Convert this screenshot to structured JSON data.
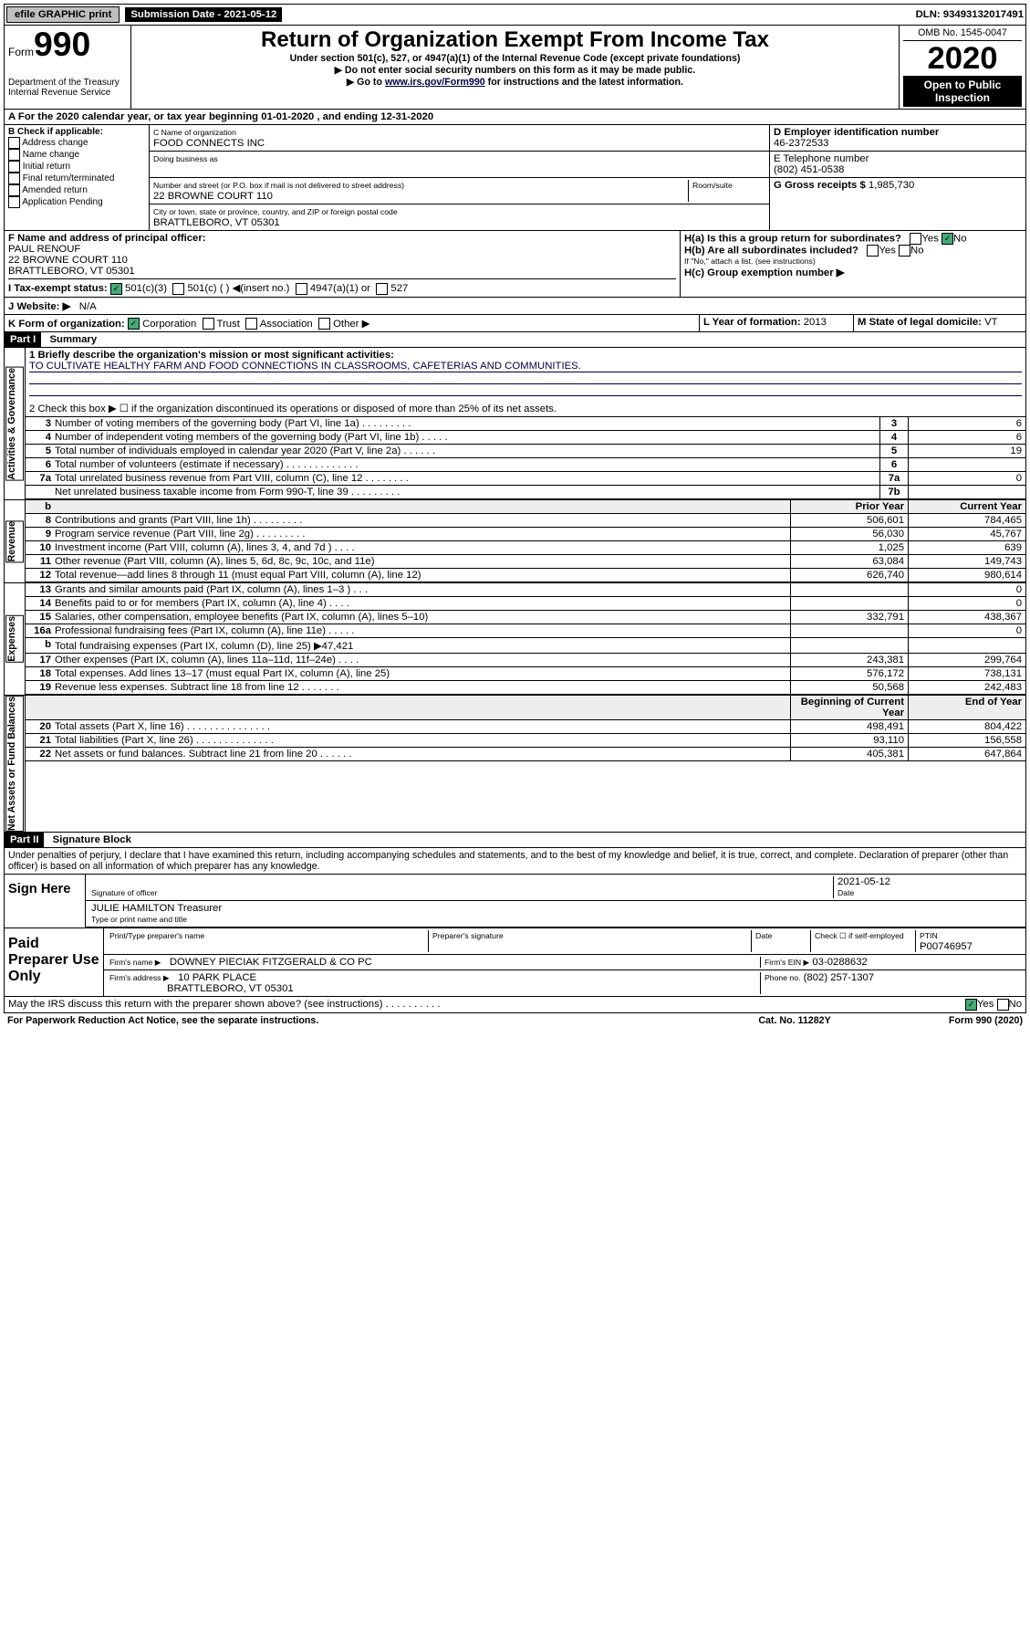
{
  "topbar": {
    "efile": "efile GRAPHIC print",
    "sub_label": "Submission Date - 2021-05-12",
    "dln": "DLN: 93493132017491"
  },
  "header": {
    "form_label": "Form",
    "form_no": "990",
    "dept1": "Department of the Treasury",
    "dept2": "Internal Revenue Service",
    "title": "Return of Organization Exempt From Income Tax",
    "sub1": "Under section 501(c), 527, or 4947(a)(1) of the Internal Revenue Code (except private foundations)",
    "sub2": "▶ Do not enter social security numbers on this form as it may be made public.",
    "sub3_pre": "▶ Go to ",
    "sub3_link": "www.irs.gov/Form990",
    "sub3_post": " for instructions and the latest information.",
    "omb": "OMB No. 1545-0047",
    "year": "2020",
    "open": "Open to Public Inspection"
  },
  "A": "A For the 2020 calendar year, or tax year beginning 01-01-2020    , and ending 12-31-2020",
  "B": {
    "hdr": "B Check if applicable:",
    "items": [
      "Address change",
      "Name change",
      "Initial return",
      "Final return/terminated",
      "Amended return",
      "Application Pending"
    ]
  },
  "C": {
    "name_lbl": "C Name of organization",
    "name": "FOOD CONNECTS INC",
    "dba_lbl": "Doing business as",
    "addr_lbl": "Number and street (or P.O. box if mail is not delivered to street address)",
    "room_lbl": "Room/suite",
    "addr": "22 BROWNE COURT 110",
    "city_lbl": "City or town, state or province, country, and ZIP or foreign postal code",
    "city": "BRATTLEBORO, VT  05301"
  },
  "D": {
    "lbl": "D Employer identification number",
    "val": "46-2372533"
  },
  "E": {
    "lbl": "E Telephone number",
    "val": "(802) 451-0538"
  },
  "G": {
    "lbl": "G Gross receipts $",
    "val": "1,985,730"
  },
  "F": {
    "lbl": "F  Name and address of principal officer:",
    "name": "PAUL RENOUF",
    "addr1": "22 BROWNE COURT 110",
    "addr2": "BRATTLEBORO, VT  05301"
  },
  "H": {
    "a": "H(a)  Is this a group return for subordinates?",
    "b": "H(b)  Are all subordinates included?",
    "bnote": "If \"No,\" attach a list. (see instructions)",
    "c": "H(c)  Group exemption number ▶",
    "yes": "Yes",
    "no": "No"
  },
  "I": {
    "lbl": "I   Tax-exempt status:",
    "opts": [
      "501(c)(3)",
      "501(c) (  ) ◀(insert no.)",
      "4947(a)(1) or",
      "527"
    ]
  },
  "J": {
    "lbl": "J   Website: ▶",
    "val": "N/A"
  },
  "K": {
    "lbl": "K Form of organization:",
    "opts": [
      "Corporation",
      "Trust",
      "Association",
      "Other ▶"
    ]
  },
  "L": {
    "lbl": "L Year of formation:",
    "val": "2013"
  },
  "M": {
    "lbl": "M State of legal domicile:",
    "val": "VT"
  },
  "part1": {
    "bar": "Part I",
    "title": "Summary",
    "group_ag": "Activities & Governance",
    "group_rev": "Revenue",
    "group_exp": "Expenses",
    "group_na": "Net Assets or Fund Balances",
    "line1_lbl": "1  Briefly describe the organization's mission or most significant activities:",
    "line1_val": "TO CULTIVATE HEALTHY FARM AND FOOD CONNECTIONS IN CLASSROOMS, CAFETERIAS AND COMMUNITIES.",
    "line2": "2   Check this box ▶ ☐  if the organization discontinued its operations or disposed of more than 25% of its net assets.",
    "lines_ag": [
      {
        "n": "3",
        "d": "Number of voting members of the governing body (Part VI, line 1a)  .  .  .  .  .  .  .  .  .",
        "b": "3",
        "v": "6"
      },
      {
        "n": "4",
        "d": "Number of independent voting members of the governing body (Part VI, line 1b)  .  .  .  .  .",
        "b": "4",
        "v": "6"
      },
      {
        "n": "5",
        "d": "Total number of individuals employed in calendar year 2020 (Part V, line 2a)  .  .  .  .  .  .",
        "b": "5",
        "v": "19"
      },
      {
        "n": "6",
        "d": "Total number of volunteers (estimate if necessary)  .  .  .  .  .  .  .  .  .  .  .  .  .",
        "b": "6",
        "v": ""
      },
      {
        "n": "7a",
        "d": "Total unrelated business revenue from Part VIII, column (C), line 12  .  .  .  .  .  .  .  .",
        "b": "7a",
        "v": "0"
      },
      {
        "n": "",
        "d": "Net unrelated business taxable income from Form 990-T, line 39  .  .  .  .  .  .  .  .  .",
        "b": "7b",
        "v": ""
      }
    ],
    "hdr_prior": "Prior Year",
    "hdr_curr": "Current Year",
    "lines_rev": [
      {
        "n": "8",
        "d": "Contributions and grants (Part VIII, line 1h)  .  .  .  .  .  .  .  .  .",
        "p": "506,601",
        "c": "784,465"
      },
      {
        "n": "9",
        "d": "Program service revenue (Part VIII, line 2g)  .  .  .  .  .  .  .  .  .",
        "p": "56,030",
        "c": "45,767"
      },
      {
        "n": "10",
        "d": "Investment income (Part VIII, column (A), lines 3, 4, and 7d )  .  .  .  .",
        "p": "1,025",
        "c": "639"
      },
      {
        "n": "11",
        "d": "Other revenue (Part VIII, column (A), lines 5, 6d, 8c, 9c, 10c, and 11e)",
        "p": "63,084",
        "c": "149,743"
      },
      {
        "n": "12",
        "d": "Total revenue—add lines 8 through 11 (must equal Part VIII, column (A), line 12)",
        "p": "626,740",
        "c": "980,614"
      }
    ],
    "lines_exp": [
      {
        "n": "13",
        "d": "Grants and similar amounts paid (Part IX, column (A), lines 1–3 )  .  .  .",
        "p": "",
        "c": "0"
      },
      {
        "n": "14",
        "d": "Benefits paid to or for members (Part IX, column (A), line 4)  .  .  .  .",
        "p": "",
        "c": "0"
      },
      {
        "n": "15",
        "d": "Salaries, other compensation, employee benefits (Part IX, column (A), lines 5–10)",
        "p": "332,791",
        "c": "438,367"
      },
      {
        "n": "16a",
        "d": "Professional fundraising fees (Part IX, column (A), line 11e)  .  .  .  .  .",
        "p": "",
        "c": "0"
      },
      {
        "n": "b",
        "d": "Total fundraising expenses (Part IX, column (D), line 25) ▶47,421",
        "p": "",
        "c": ""
      },
      {
        "n": "17",
        "d": "Other expenses (Part IX, column (A), lines 11a–11d, 11f–24e)  .  .  .  .",
        "p": "243,381",
        "c": "299,764"
      },
      {
        "n": "18",
        "d": "Total expenses. Add lines 13–17 (must equal Part IX, column (A), line 25)",
        "p": "576,172",
        "c": "738,131"
      },
      {
        "n": "19",
        "d": "Revenue less expenses. Subtract line 18 from line 12  .  .  .  .  .  .  .",
        "p": "50,568",
        "c": "242,483"
      }
    ],
    "hdr_beg": "Beginning of Current Year",
    "hdr_end": "End of Year",
    "lines_na": [
      {
        "n": "20",
        "d": "Total assets (Part X, line 16)  .  .  .  .  .  .  .  .  .  .  .  .  .  .  .",
        "p": "498,491",
        "c": "804,422"
      },
      {
        "n": "21",
        "d": "Total liabilities (Part X, line 26)  .  .  .  .  .  .  .  .  .  .  .  .  .  .",
        "p": "93,110",
        "c": "156,558"
      },
      {
        "n": "22",
        "d": "Net assets or fund balances. Subtract line 21 from line 20  .  .  .  .  .  .",
        "p": "405,381",
        "c": "647,864"
      }
    ]
  },
  "part2": {
    "bar": "Part II",
    "title": "Signature Block",
    "decl": "Under penalties of perjury, I declare that I have examined this return, including accompanying schedules and statements, and to the best of my knowledge and belief, it is true, correct, and complete. Declaration of preparer (other than officer) is based on all information of which preparer has any knowledge.",
    "sign": "Sign Here",
    "sig_officer": "Signature of officer",
    "sig_date": "2021-05-12",
    "date_lbl": "Date",
    "name_title": "JULIE HAMILTON  Treasurer",
    "type_lbl": "Type or print name and title",
    "paid": "Paid Preparer Use Only",
    "p_name_lbl": "Print/Type preparer's name",
    "p_sig_lbl": "Preparer's signature",
    "p_date_lbl": "Date",
    "p_check_lbl": "Check ☐ if self-employed",
    "ptin_lbl": "PTIN",
    "ptin": "P00746957",
    "firm_name_lbl": "Firm's name     ▶",
    "firm_name": "DOWNEY PIECIAK FITZGERALD & CO PC",
    "firm_ein_lbl": "Firm's EIN ▶",
    "firm_ein": "03-0288632",
    "firm_addr_lbl": "Firm's address ▶",
    "firm_addr1": "10 PARK PLACE",
    "firm_addr2": "BRATTLEBORO, VT  05301",
    "phone_lbl": "Phone no.",
    "phone": "(802) 257-1307",
    "may_discuss": "May the IRS discuss this return with the preparer shown above? (see instructions)   .   .   .   .   .   .   .   .   .   .",
    "yes": "Yes",
    "no": "No"
  },
  "footer": {
    "left": "For Paperwork Reduction Act Notice, see the separate instructions.",
    "mid": "Cat. No. 11282Y",
    "right": "Form 990 (2020)"
  }
}
